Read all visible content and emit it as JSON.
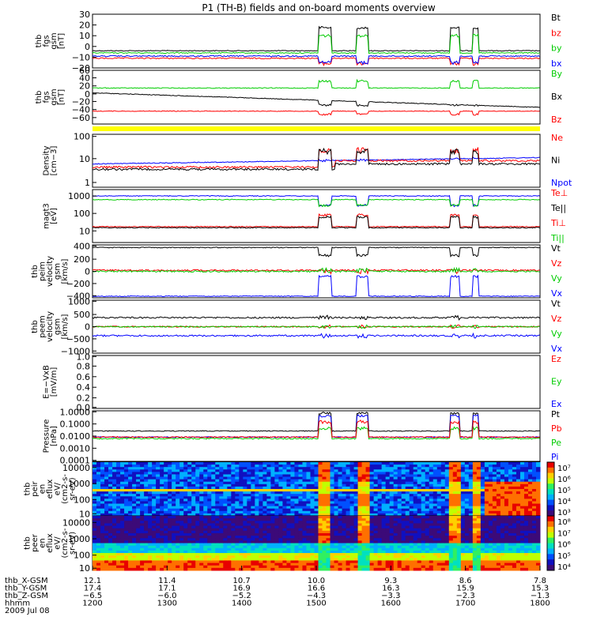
{
  "chart_data": {
    "type": "line",
    "title": "P1 (TH-B) fields and on-board moments overview",
    "panels": [
      {
        "ylabel": [
          "thb",
          "fgs",
          "gsm",
          "[nT]"
        ],
        "yticks": [
          "30",
          "20",
          "10",
          "0",
          "−10",
          "−20"
        ],
        "ylim": [
          -20,
          30
        ],
        "legend": [
          {
            "label": "Bt",
            "color": "#000000"
          },
          {
            "label": "bz",
            "color": "#ff0000"
          },
          {
            "label": "by",
            "color": "#00cc00"
          },
          {
            "label": "bx",
            "color": "#0000ff"
          }
        ]
      },
      {
        "ylabel": [
          "thb",
          "fgs",
          "gsm",
          "[nT]"
        ],
        "yticks": [
          "60",
          "40",
          "20",
          "0",
          "−20",
          "−40",
          "−60"
        ],
        "ylim": [
          -70,
          60
        ],
        "legend": [
          {
            "label": "By",
            "color": "#00cc00"
          },
          {
            "label": "Bx",
            "color": "#000000"
          },
          {
            "label": "Bz",
            "color": "#ff0000"
          }
        ]
      },
      {
        "ylabel": [
          "Density",
          "[cm−3]"
        ],
        "yticks": [
          "100",
          "10",
          "1"
        ],
        "scale": "log",
        "ylim": [
          1,
          150
        ],
        "legend": [
          {
            "label": "Ne",
            "color": "#ff0000"
          },
          {
            "label": "Ni",
            "color": "#000000"
          },
          {
            "label": "Npot",
            "color": "#0000ff"
          }
        ]
      },
      {
        "ylabel": [
          "magt3",
          "[eV]"
        ],
        "yticks": [
          "1000",
          "100",
          "10"
        ],
        "scale": "log",
        "ylim": [
          3,
          3000
        ],
        "legend": [
          {
            "label": "Te⊥",
            "color": "#ff0000"
          },
          {
            "label": "Te||",
            "color": "#000000"
          },
          {
            "label": "Ti⊥",
            "color": "#ff0000"
          },
          {
            "label": "Ti||",
            "color": "#00cc00"
          }
        ]
      },
      {
        "ylabel": [
          "thb",
          "peim",
          "velocity",
          "gsm",
          "[km/s]"
        ],
        "yticks": [
          "400",
          "200",
          "0",
          "−200",
          "−400"
        ],
        "ylim": [
          -400,
          400
        ],
        "legend": [
          {
            "label": "Vt",
            "color": "#000000"
          },
          {
            "label": "Vz",
            "color": "#ff0000"
          },
          {
            "label": "Vy",
            "color": "#00cc00"
          },
          {
            "label": "Vx",
            "color": "#0000ff"
          }
        ]
      },
      {
        "ylabel": [
          "thb",
          "peem",
          "velocity",
          "gsm",
          "[km/s]"
        ],
        "yticks": [
          "1000",
          "500",
          "0",
          "−500",
          "−1000"
        ],
        "ylim": [
          -1000,
          1000
        ],
        "legend": [
          {
            "label": "Vt",
            "color": "#000000"
          },
          {
            "label": "Vz",
            "color": "#ff0000"
          },
          {
            "label": "Vy",
            "color": "#00cc00"
          },
          {
            "label": "Vx",
            "color": "#0000ff"
          }
        ]
      },
      {
        "ylabel": [
          "E=−VxB",
          "[mV/m]"
        ],
        "yticks": [
          "1.0",
          "0.8",
          "0.6",
          "0.4",
          "0.2",
          "0.0"
        ],
        "ylim": [
          0,
          1
        ],
        "legend": [
          {
            "label": "Ez",
            "color": "#ff0000"
          },
          {
            "label": "Ey",
            "color": "#00cc00"
          },
          {
            "label": "Ex",
            "color": "#0000ff"
          }
        ]
      },
      {
        "ylabel": [
          "Pressure",
          "[nPa]"
        ],
        "yticks": [
          "1.0000",
          "0.1000",
          "0.0100",
          "0.0010",
          "0.0001"
        ],
        "scale": "log",
        "ylim": [
          0.0001,
          2
        ],
        "legend": [
          {
            "label": "Pt",
            "color": "#000000"
          },
          {
            "label": "Pb",
            "color": "#ff0000"
          },
          {
            "label": "Pe",
            "color": "#00cc00"
          },
          {
            "label": "Pi",
            "color": "#0000ff"
          }
        ]
      },
      {
        "ylabel": [
          "thb",
          "peir",
          "en",
          "eflux",
          "eV/",
          "(cm2-s-",
          "sr-eV)"
        ],
        "yticks": [
          "10000",
          "1000",
          "100",
          "10"
        ],
        "scale": "log",
        "type": "spectrogram",
        "colorbar": [
          "10⁷",
          "10⁶",
          "10⁵",
          "10⁴",
          "10³"
        ]
      },
      {
        "ylabel": [
          "thb",
          "peer",
          "en",
          "eflux",
          "eV/",
          "(cm2-s-",
          "sr-eV)"
        ],
        "yticks": [
          "10000",
          "1000",
          "100",
          "10"
        ],
        "scale": "log",
        "type": "spectrogram",
        "colorbar": [
          "10⁸",
          "10⁷",
          "10⁶",
          "10⁵",
          "10⁴"
        ]
      }
    ],
    "xaxis": {
      "rows": [
        {
          "label": "thb_X-GSM",
          "values": [
            "12.1",
            "11.4",
            "10.7",
            "10.0",
            "9.3",
            "8.6",
            "7.8"
          ]
        },
        {
          "label": "thb_Y-GSM",
          "values": [
            "17.4",
            "17.1",
            "16.9",
            "16.6",
            "16.3",
            "15.9",
            "15.3"
          ]
        },
        {
          "label": "thb_Z-GSM",
          "values": [
            "−6.5",
            "−6.0",
            "−5.2",
            "−4.3",
            "−3.3",
            "−2.3",
            "−1.3"
          ]
        },
        {
          "label": "hhmm",
          "values": [
            "1200",
            "1300",
            "1400",
            "1500",
            "1600",
            "1700",
            "1800"
          ]
        }
      ],
      "date": "2009 Jul 08",
      "time_range": [
        "1200",
        "1800"
      ],
      "intervals": [
        [
          "1502",
          "1512"
        ],
        [
          "1532",
          "1542"
        ],
        [
          "1648",
          "1655"
        ],
        [
          "1706",
          "1711"
        ]
      ]
    }
  }
}
